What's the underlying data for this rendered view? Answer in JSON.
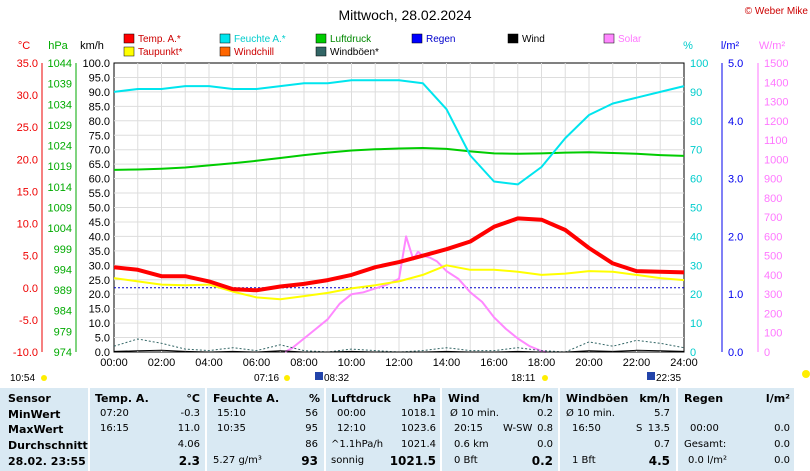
{
  "chart_data": {
    "type": "line",
    "title": "Mittwoch, 28.02.2024",
    "credit": "© Weber Mike",
    "x_ticks": [
      "00:00",
      "02:00",
      "04:00",
      "06:00",
      "08:00",
      "10:00",
      "12:00",
      "14:00",
      "16:00",
      "18:00",
      "20:00",
      "22:00",
      "24:00"
    ],
    "axes": {
      "temp": {
        "unit": "°C",
        "ticks": [
          "35.0",
          "30.0",
          "25.0",
          "20.0",
          "15.0",
          "10.0",
          "5.0",
          "0.0",
          "-5.0",
          "-10.0"
        ],
        "range": [
          -10,
          35
        ],
        "color": "#e00000"
      },
      "hpa": {
        "unit": "hPa",
        "ticks": [
          "1044",
          "1039",
          "1034",
          "1029",
          "1024",
          "1019",
          "1014",
          "1009",
          "1004",
          "999",
          "994",
          "989",
          "984",
          "979",
          "974"
        ],
        "range": [
          974,
          1044
        ],
        "color": "#00bb00"
      },
      "kmh": {
        "unit": "km/h",
        "ticks": [
          "100.0",
          "95.0",
          "90.0",
          "85.0",
          "80.0",
          "75.0",
          "70.0",
          "65.0",
          "60.0",
          "55.0",
          "50.0",
          "45.0",
          "40.0",
          "35.0",
          "30.0",
          "25.0",
          "20.0",
          "15.0",
          "10.0",
          "5.0",
          "0.0"
        ],
        "range": [
          0,
          100
        ],
        "color": "#000000"
      },
      "pct": {
        "unit": "%",
        "ticks": [
          "100",
          "90",
          "80",
          "70",
          "60",
          "50",
          "40",
          "30",
          "20",
          "10",
          "0"
        ],
        "range": [
          0,
          100
        ],
        "color": "#00cccc"
      },
      "lm2": {
        "unit": "l/m²",
        "ticks": [
          "5.0",
          "4.0",
          "3.0",
          "2.0",
          "1.0",
          "0.0"
        ],
        "range": [
          0,
          5
        ],
        "color": "#0000ff"
      },
      "wm2": {
        "unit": "W/m²",
        "ticks": [
          "1500",
          "1400",
          "1300",
          "1200",
          "1100",
          "1000",
          "900",
          "800",
          "700",
          "600",
          "500",
          "400",
          "300",
          "200",
          "100",
          "0"
        ],
        "range": [
          0,
          1500
        ],
        "color": "#ff88ff"
      }
    },
    "legend": [
      {
        "label": "Temp. A.*",
        "color": "#ff0000"
      },
      {
        "label": "Feuchte A.*",
        "color": "#00e5ee"
      },
      {
        "label": "Luftdruck",
        "color": "#00cc00"
      },
      {
        "label": "Regen",
        "color": "#0000ff"
      },
      {
        "label": "Wind",
        "color": "#000000"
      },
      {
        "label": "Solar",
        "color": "#ff88ff"
      },
      {
        "label": "Taupunkt*",
        "color": "#ffff00"
      },
      {
        "label": "Windchill",
        "color": "#ff6600"
      },
      {
        "label": "Windböen*",
        "color": "#336666"
      }
    ],
    "series": [
      {
        "name": "Temp. A.*",
        "axis": "temp",
        "color": "#ff0000",
        "x": [
          0,
          1,
          2,
          3,
          4,
          5,
          6,
          7,
          8,
          9,
          10,
          11,
          12,
          13,
          14,
          15,
          16,
          17,
          18,
          19,
          20,
          21,
          22,
          23,
          24
        ],
        "values": [
          3.2,
          2.8,
          1.8,
          1.8,
          1.0,
          -0.2,
          -0.4,
          0.2,
          0.6,
          1.2,
          2.0,
          3.2,
          4.0,
          5.0,
          6.0,
          7.2,
          9.5,
          10.8,
          10.6,
          9.0,
          6.2,
          3.8,
          2.6,
          2.5,
          2.4
        ]
      },
      {
        "name": "Taupunkt*",
        "axis": "temp",
        "color": "#ffff00",
        "x": [
          0,
          1,
          2,
          3,
          4,
          5,
          6,
          7,
          8,
          9,
          10,
          11,
          12,
          13,
          14,
          15,
          16,
          17,
          18,
          19,
          20,
          21,
          22,
          23,
          24
        ],
        "values": [
          1.5,
          1.0,
          0.5,
          0.4,
          0.5,
          -0.6,
          -1.5,
          -1.8,
          -1.3,
          -0.8,
          -0.1,
          0.4,
          1.0,
          2.0,
          3.5,
          2.8,
          2.8,
          2.5,
          2.0,
          2.2,
          2.6,
          2.5,
          2.0,
          1.5,
          1.2
        ]
      },
      {
        "name": "Feuchte A.*",
        "axis": "pct",
        "color": "#00e5ee",
        "x": [
          0,
          1,
          2,
          3,
          4,
          5,
          6,
          7,
          8,
          9,
          10,
          11,
          12,
          13,
          14,
          15,
          16,
          17,
          18,
          19,
          20,
          21,
          22,
          23,
          24
        ],
        "values": [
          90,
          91,
          91,
          92,
          92,
          91,
          91,
          92,
          93,
          93,
          94,
          94,
          94,
          93,
          84,
          68,
          59,
          58,
          64,
          74,
          82,
          86,
          88,
          90,
          92
        ]
      },
      {
        "name": "Luftdruck",
        "axis": "hpa",
        "color": "#00cc00",
        "x": [
          0,
          1,
          2,
          3,
          4,
          5,
          6,
          7,
          8,
          9,
          10,
          11,
          12,
          13,
          14,
          15,
          16,
          17,
          18,
          19,
          20,
          21,
          22,
          23,
          24
        ],
        "values": [
          1018.1,
          1018.2,
          1018.4,
          1018.7,
          1019.2,
          1019.7,
          1020.3,
          1021.0,
          1021.7,
          1022.3,
          1022.8,
          1023.1,
          1023.3,
          1023.4,
          1023.2,
          1022.6,
          1022.1,
          1022.0,
          1022.1,
          1022.3,
          1022.4,
          1022.2,
          1022.0,
          1021.7,
          1021.5
        ]
      },
      {
        "name": "Wind",
        "axis": "kmh",
        "color": "#000000",
        "x": [
          0,
          1,
          2,
          3,
          4,
          5,
          6,
          7,
          8,
          9,
          10,
          11,
          12,
          13,
          14,
          15,
          16,
          17,
          18,
          19,
          20,
          21,
          22,
          23,
          24
        ],
        "values": [
          0.2,
          0.4,
          0.6,
          0.2,
          0.0,
          0.2,
          0.0,
          0.4,
          0.0,
          0.0,
          0.2,
          0.0,
          0.0,
          0.0,
          0.2,
          0.0,
          0.0,
          0.2,
          0.0,
          0.0,
          0.4,
          0.2,
          0.6,
          0.4,
          0.2
        ]
      },
      {
        "name": "Windböen*",
        "axis": "kmh",
        "color": "#336666",
        "x": [
          0,
          1,
          2,
          3,
          4,
          5,
          6,
          7,
          8,
          9,
          10,
          11,
          12,
          13,
          14,
          15,
          16,
          17,
          18,
          19,
          20,
          21,
          22,
          23,
          24
        ],
        "values": [
          2.0,
          4.5,
          3.0,
          1.0,
          0.5,
          1.5,
          0.5,
          2.5,
          0.5,
          0.0,
          1.0,
          0.5,
          0.0,
          0.5,
          1.5,
          0.5,
          0.5,
          1.5,
          0.5,
          0.0,
          3.5,
          2.0,
          4.0,
          3.0,
          1.5
        ]
      },
      {
        "name": "Solar",
        "axis": "wm2",
        "color": "#ff88ff",
        "x": [
          7.2,
          7.5,
          8,
          8.5,
          9,
          9.5,
          10,
          10.5,
          11,
          11.5,
          12,
          12.3,
          12.6,
          12.8,
          13,
          13.3,
          13.6,
          14,
          14.5,
          15,
          15.5,
          16,
          16.5,
          17,
          17.5,
          18,
          18.2
        ],
        "values": [
          0,
          20,
          70,
          120,
          170,
          250,
          300,
          310,
          330,
          350,
          380,
          600,
          480,
          520,
          500,
          490,
          470,
          420,
          380,
          310,
          260,
          180,
          120,
          70,
          30,
          5,
          0
        ]
      }
    ],
    "markers": {
      "left": "10:54",
      "sunrise": "07:16",
      "civil_dawn": "08:32",
      "sunset": "18:11",
      "moon": "22:35"
    }
  },
  "stats": {
    "headers": {
      "sensor": "Sensor",
      "temp": "Temp. A.",
      "temp_unit": "°C",
      "hum": "Feuchte A.",
      "hum_unit": "%",
      "press": "Luftdruck",
      "press_unit": "hPa",
      "wind": "Wind",
      "wind_unit": "km/h",
      "gust": "Windböen",
      "gust_unit": "km/h",
      "rain": "Regen",
      "rain_unit": "l/m²"
    },
    "rows": {
      "min": {
        "label": "MinWert",
        "temp_time": "07:20",
        "temp_val": "-0.3",
        "hum_time": "15:10",
        "hum_val": "56",
        "press_time": "00:00",
        "press_val": "1018.1",
        "wind_time": "Ø 10 min.",
        "wind_val": "0.2",
        "gust_time": "Ø 10 min.",
        "gust_val": "5.7",
        "rain_time": "",
        "rain_val": ""
      },
      "max": {
        "label": "MaxWert",
        "temp_time": "16:15",
        "temp_val": "11.0",
        "hum_time": "10:35",
        "hum_val": "95",
        "press_time": "12:10",
        "press_val": "1023.6",
        "wind_time": "20:15",
        "wind_dir": "W-SW",
        "wind_val": "0.8",
        "gust_time": "16:50",
        "gust_dir": "S",
        "gust_val": "13.5",
        "rain_time": "00:00",
        "rain_val": "0.0"
      },
      "avg": {
        "label": "Durchschnitt",
        "temp_val": "4.06",
        "hum_val": "86",
        "press_time": "^1.1hPa/h",
        "press_val": "1021.4",
        "wind_time": "0.6 km",
        "wind_val": "0.0",
        "gust_val": "0.7",
        "rain_time": "Gesamt:",
        "rain_val": "0.0"
      },
      "now": {
        "label": "28.02. 23:55",
        "temp_val": "2.3",
        "hum_time": "5.27 g/m³",
        "hum_val": "93",
        "press_time": "sonnig",
        "press_val": "1021.5",
        "wind_time": "0 Bft",
        "wind_val": "0.2",
        "gust_time": "1 Bft",
        "gust_val": "4.5",
        "rain_time": "0.0 l/m²",
        "rain_val": "0.0"
      }
    }
  }
}
